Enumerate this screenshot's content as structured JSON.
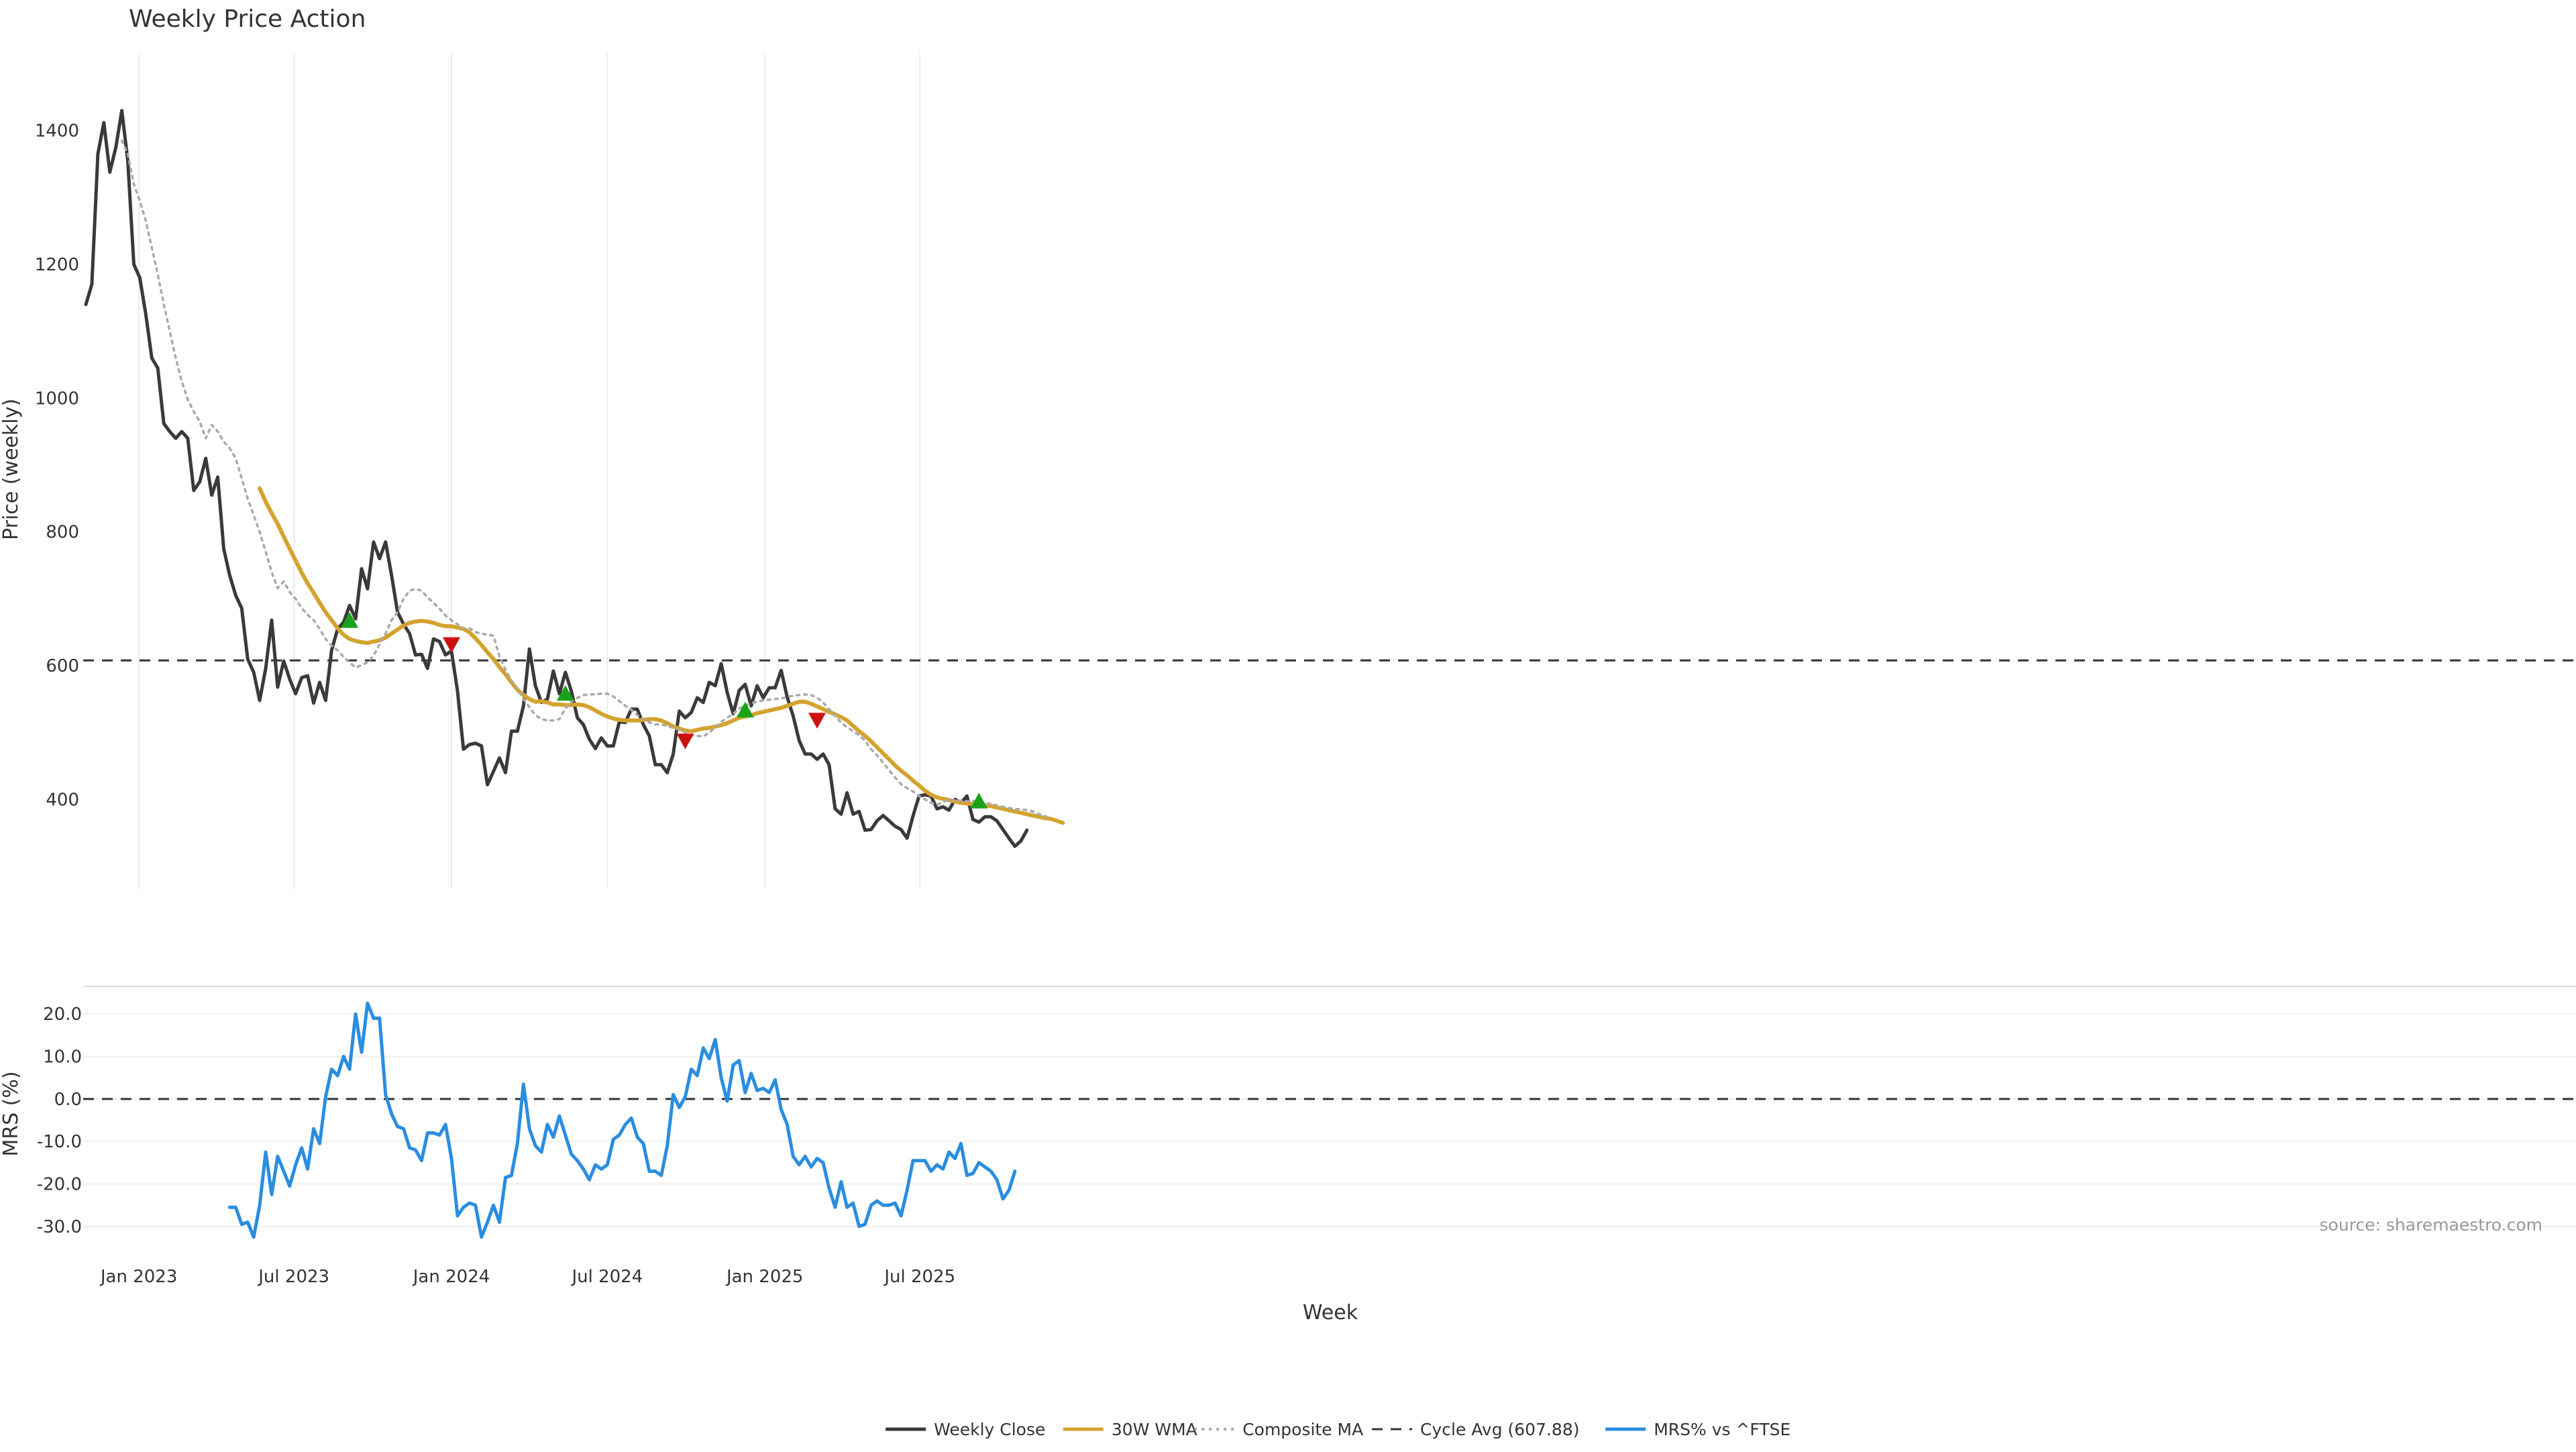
{
  "title": "Weekly Price Action",
  "source_note": "source: sharemaestro.com",
  "chart_data": [
    {
      "type": "line",
      "title": "Weekly Price Action",
      "ylabel": "Price (weekly)",
      "xlabel": "",
      "ylim": [
        268,
        1495
      ],
      "yticks": [
        400,
        600,
        800,
        1000,
        1200,
        1400
      ],
      "grid": "vertical only",
      "x_start": "2022-10-31",
      "x_step_days": 7,
      "reference_line": {
        "name": "Cycle Avg (607.88)",
        "value": 607.88
      },
      "series": [
        {
          "name": "Weekly Close",
          "color": "#3a3a3a",
          "start_week": 0,
          "values": [
            1140,
            1170,
            1365,
            1412,
            1338,
            1375,
            1430,
            1355,
            1200,
            1180,
            1125,
            1060,
            1045,
            962,
            950,
            940,
            950,
            940,
            862,
            875,
            910,
            855,
            882,
            775,
            735,
            705,
            686,
            610,
            590,
            548,
            596,
            668,
            568,
            607,
            580,
            558,
            582,
            585,
            544,
            575,
            548,
            623,
            655,
            665,
            690,
            670,
            745,
            715,
            785,
            760,
            785,
            735,
            680,
            662,
            648,
            616,
            617,
            596,
            640,
            636,
            616,
            622,
            562,
            475,
            482,
            484,
            480,
            422,
            442,
            462,
            440,
            502,
            502,
            540,
            625,
            570,
            545,
            550,
            592,
            558,
            590,
            562,
            522,
            512,
            490,
            476,
            492,
            480,
            480,
            516,
            515,
            535,
            535,
            512,
            495,
            452,
            452,
            440,
            468,
            532,
            522,
            530,
            552,
            545,
            575,
            570,
            603,
            560,
            528,
            563,
            572,
            540,
            570,
            552,
            567,
            567,
            593,
            553,
            525,
            488,
            468,
            468,
            460,
            468,
            452,
            386,
            378,
            410,
            378,
            382,
            354,
            355,
            368,
            376,
            368,
            360,
            355,
            342,
            375,
            405,
            407,
            405,
            386,
            389,
            384,
            400,
            395,
            405,
            370,
            366,
            374,
            374,
            368,
            355,
            342,
            330,
            338,
            354
          ]
        },
        {
          "name": "30W WMA",
          "color": "#d4a32e",
          "start_week": 29,
          "values": [
            865,
            845,
            828,
            812,
            793,
            775,
            757,
            739,
            723,
            709,
            694,
            680,
            668,
            656,
            646,
            640,
            637,
            635,
            634,
            636,
            638,
            642,
            648,
            654,
            660,
            664,
            666,
            667,
            666,
            664,
            661,
            659,
            659,
            657,
            655,
            650,
            641,
            631,
            620,
            610,
            598,
            587,
            575,
            564,
            556,
            550,
            546,
            547,
            545,
            542,
            542,
            541,
            541,
            542,
            541,
            538,
            533,
            528,
            524,
            521,
            519,
            518,
            518,
            518,
            519,
            520,
            520,
            518,
            514,
            509,
            506,
            503,
            502,
            504,
            506,
            507,
            509,
            511,
            514,
            518,
            522,
            524,
            526,
            529,
            531,
            533,
            535,
            537,
            540,
            543,
            546,
            546,
            543,
            539,
            535,
            531,
            527,
            523,
            518,
            510,
            502,
            495,
            487,
            478,
            469,
            460,
            451,
            443,
            436,
            428,
            421,
            413,
            407,
            403,
            401,
            399,
            397,
            395,
            394,
            393,
            392,
            391,
            390,
            388,
            386,
            384,
            382,
            380,
            378,
            376,
            374,
            372,
            371,
            368,
            365
          ]
        },
        {
          "name": "Composite MA",
          "color": "#aaaaaa",
          "start_week": 6,
          "values": [
            1385,
            1365,
            1320,
            1295,
            1265,
            1225,
            1185,
            1140,
            1100,
            1060,
            1025,
            998,
            980,
            965,
            940,
            960,
            950,
            935,
            925,
            910,
            880,
            850,
            825,
            800,
            770,
            740,
            716,
            726,
            710,
            700,
            686,
            676,
            668,
            655,
            640,
            630,
            623,
            613,
            605,
            597,
            601,
            605,
            615,
            632,
            648,
            668,
            680,
            700,
            712,
            715,
            712,
            702,
            694,
            685,
            675,
            668,
            662,
            656,
            656,
            650,
            648,
            646,
            645,
            614,
            594,
            578,
            566,
            550,
            538,
            526,
            520,
            518,
            518,
            520,
            536,
            546,
            552,
            556,
            557,
            557,
            558,
            558,
            554,
            547,
            540,
            534,
            526,
            520,
            515,
            512,
            512,
            510,
            507,
            504,
            500,
            496,
            495,
            494,
            500,
            508,
            516,
            522,
            528,
            536,
            540,
            544,
            546,
            548,
            549,
            550,
            551,
            553,
            555,
            556,
            557,
            556,
            552,
            545,
            535,
            525,
            515,
            508,
            502,
            496,
            488,
            475,
            466,
            455,
            444,
            433,
            423,
            417,
            412,
            405,
            400,
            395,
            392,
            396,
            400,
            399,
            398,
            397,
            398,
            396,
            393,
            394,
            391,
            389,
            387,
            386,
            385,
            384,
            382,
            378,
            375,
            372
          ]
        },
        {
          "name": "Cycle Avg (607.88)",
          "color": "#333333",
          "style": "dashed"
        }
      ],
      "signals": [
        {
          "kind": "buy",
          "week": 44,
          "value": 667,
          "color": "#1aa31a"
        },
        {
          "kind": "sell",
          "week": 61,
          "value": 632,
          "color": "#cc1111"
        },
        {
          "kind": "buy",
          "week": 80,
          "value": 558,
          "color": "#1aa31a"
        },
        {
          "kind": "sell",
          "week": 100,
          "value": 488,
          "color": "#cc1111"
        },
        {
          "kind": "buy",
          "week": 110,
          "value": 533,
          "color": "#1aa31a"
        },
        {
          "kind": "sell",
          "week": 122,
          "value": 519,
          "color": "#cc1111"
        },
        {
          "kind": "buy",
          "week": 149,
          "value": 397,
          "color": "#1aa31a"
        }
      ]
    },
    {
      "type": "line",
      "ylabel": "MRS (%)",
      "xlabel": "Week",
      "ylim": [
        -33.5,
        26.5
      ],
      "yticks": [
        "20.0",
        "10.0",
        "0.0",
        "-10.0",
        "-20.0",
        "-30.0"
      ],
      "ytick_values": [
        20,
        10,
        0,
        -10,
        -20,
        -30
      ],
      "grid": "horizontal",
      "x_start": "2022-10-31",
      "x_step_days": 7,
      "xticks": [
        {
          "label": "Jan 2023",
          "date": "2023-01-01"
        },
        {
          "label": "Jul 2023",
          "date": "2023-07-01"
        },
        {
          "label": "Jan 2024",
          "date": "2024-01-01"
        },
        {
          "label": "Jul 2024",
          "date": "2024-07-01"
        },
        {
          "label": "Jan 2025",
          "date": "2025-01-01"
        },
        {
          "label": "Jul 2025",
          "date": "2025-07-01"
        }
      ],
      "reference_line": {
        "value": 0
      },
      "series": [
        {
          "name": "MRS% vs ^FTSE",
          "color": "#2a8de0",
          "start_week": 24,
          "values": [
            -25.5,
            -25.5,
            -29.5,
            -29,
            -32.5,
            -25,
            -12.5,
            -22.5,
            -13.5,
            -17,
            -20.5,
            -15.5,
            -11.5,
            -16.5,
            -7,
            -10.5,
            0.5,
            7,
            5.5,
            10,
            7,
            20,
            11,
            22.5,
            19,
            19,
            1,
            -3.5,
            -6.5,
            -7,
            -11.5,
            -12,
            -14.5,
            -8,
            -8,
            -8.5,
            -6,
            -14,
            -27.5,
            -25.5,
            -24.5,
            -25,
            -32.5,
            -29,
            -25,
            -29,
            -18.5,
            -18,
            -10.5,
            3.5,
            -7,
            -11,
            -12.5,
            -6,
            -9,
            -4,
            -8.5,
            -13,
            -14.5,
            -16.5,
            -19,
            -15.5,
            -16.5,
            -15.5,
            -9.5,
            -8.5,
            -6,
            -4.5,
            -9,
            -10.5,
            -17,
            -17,
            -18,
            -11,
            1,
            -2,
            0.5,
            7,
            5.5,
            12,
            9.5,
            14,
            5,
            -0.5,
            8,
            9,
            1.5,
            6,
            2,
            2.5,
            1.5,
            4.5,
            -2.5,
            -6,
            -13.5,
            -15.5,
            -13.5,
            -16,
            -14,
            -15,
            -21,
            -25.5,
            -19.5,
            -25.5,
            -24.5,
            -30,
            -29.5,
            -25,
            -24,
            -25,
            -25,
            -24.5,
            -27.5,
            -21.5,
            -14.5,
            -14.5,
            -14.5,
            -17,
            -15.5,
            -16.5,
            -12.5,
            -14,
            -10.5,
            -18,
            -17.5,
            -15,
            -16,
            -17,
            -19,
            -23.5,
            -21.5,
            -17
          ]
        }
      ]
    }
  ],
  "legend": {
    "placement": "bottom-center",
    "items": [
      {
        "label": "Weekly Close",
        "color": "#3a3a3a",
        "style": "solid"
      },
      {
        "label": "30W WMA",
        "color": "#d4a32e",
        "style": "solid"
      },
      {
        "label": "Composite MA",
        "color": "#aaaaaa",
        "style": "dotted"
      },
      {
        "label": "Cycle Avg (607.88)",
        "color": "#333333",
        "style": "dashed"
      },
      {
        "label": "MRS% vs ^FTSE",
        "color": "#2a8de0",
        "style": "solid"
      }
    ]
  }
}
